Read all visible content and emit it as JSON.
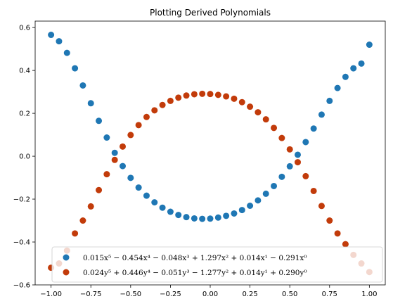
{
  "chart_data": {
    "type": "scatter",
    "title": "Plotting Derived Polynomials",
    "xlabel": "",
    "ylabel": "",
    "xlim": [
      -1.1,
      1.1
    ],
    "ylim": [
      -0.6,
      0.63
    ],
    "x_ticks": [
      -1.0,
      -0.75,
      -0.5,
      -0.25,
      0.0,
      0.25,
      0.5,
      0.75,
      1.0
    ],
    "x_tick_labels": [
      "−1.00",
      "−0.75",
      "−0.50",
      "−0.25",
      "0.00",
      "0.25",
      "0.50",
      "0.75",
      "1.00"
    ],
    "y_ticks": [
      -0.6,
      -0.4,
      -0.2,
      0.0,
      0.2,
      0.4,
      0.6
    ],
    "y_tick_labels": [
      "−0.6",
      "−0.4",
      "−0.2",
      "0.0",
      "0.2",
      "0.4",
      "0.6"
    ],
    "grid": false,
    "legend_position": "lower-right",
    "x": [
      -1.0,
      -0.95,
      -0.9,
      -0.85,
      -0.8,
      -0.75,
      -0.7,
      -0.65,
      -0.6,
      -0.55,
      -0.5,
      -0.45,
      -0.4,
      -0.35,
      -0.3,
      -0.25,
      -0.2,
      -0.15,
      -0.1,
      -0.05,
      0.0,
      0.05,
      0.1,
      0.15,
      0.2,
      0.25,
      0.3,
      0.35,
      0.4,
      0.45,
      0.5,
      0.55,
      0.6,
      0.65,
      0.7,
      0.75,
      0.8,
      0.85,
      0.9,
      0.95,
      1.0
    ],
    "series": [
      {
        "name": "0.015x⁵ − 0.454x⁴ − 0.048x³ + 1.297x² + 0.014x¹ − 0.291x⁰",
        "color": "#1f77b4",
        "values": [
          0.566,
          0.536,
          0.482,
          0.41,
          0.33,
          0.247,
          0.165,
          0.087,
          0.016,
          -0.046,
          -0.101,
          -0.146,
          -0.184,
          -0.215,
          -0.24,
          -0.259,
          -0.274,
          -0.284,
          -0.29,
          -0.292,
          -0.291,
          -0.286,
          -0.278,
          -0.267,
          -0.251,
          -0.231,
          -0.206,
          -0.175,
          -0.139,
          -0.096,
          -0.047,
          0.007,
          0.066,
          0.129,
          0.194,
          0.258,
          0.318,
          0.37,
          0.41,
          0.432,
          0.52
        ]
      },
      {
        "name": "0.024y⁵ + 0.446y⁴ − 0.051y³ − 1.277y² + 0.014y¹ + 0.290y⁰",
        "color": "#c23b0a",
        "values": [
          -0.52,
          -0.5,
          -0.44,
          -0.36,
          -0.3,
          -0.234,
          -0.158,
          -0.084,
          -0.017,
          0.045,
          0.099,
          0.145,
          0.183,
          0.214,
          0.239,
          0.258,
          0.273,
          0.283,
          0.289,
          0.291,
          0.29,
          0.286,
          0.279,
          0.268,
          0.252,
          0.231,
          0.205,
          0.172,
          0.132,
          0.085,
          0.032,
          -0.028,
          -0.093,
          -0.162,
          -0.232,
          -0.3,
          -0.36,
          -0.41,
          -0.46,
          -0.5,
          -0.54
        ]
      }
    ]
  }
}
